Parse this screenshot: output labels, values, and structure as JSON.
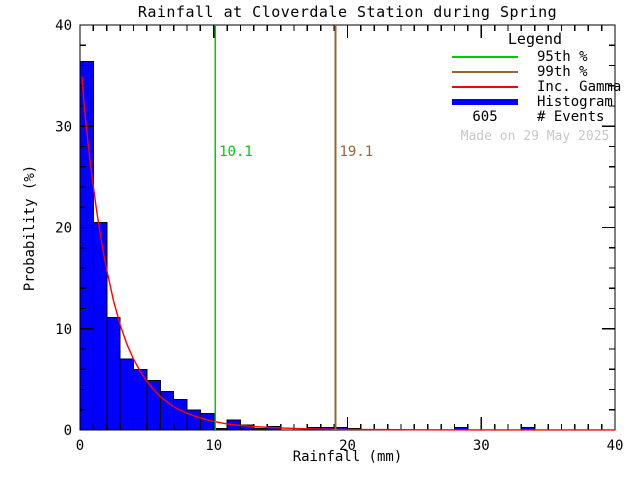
{
  "chart_data": {
    "type": "bar",
    "title": "Rainfall at Cloverdale Station during Spring",
    "xlabel": "Rainfall (mm)",
    "ylabel": "Probability (%)",
    "xlim": [
      0,
      40
    ],
    "ylim": [
      0,
      40
    ],
    "x_major_ticks": [
      0,
      10,
      20,
      30,
      40
    ],
    "x_minor_step": 1,
    "y_major_ticks": [
      0,
      10,
      20,
      30,
      40
    ],
    "y_minor_step": 2,
    "grid": false,
    "legend_position": "top-right",
    "histogram": {
      "color": "#0000ff",
      "bin_start": 0,
      "bin_width": 1,
      "values": [
        36.4,
        20.5,
        11.1,
        7.0,
        6.0,
        4.9,
        3.8,
        3.0,
        2.0,
        1.65,
        0.17,
        1.0,
        0.5,
        0.17,
        0.33,
        0,
        0,
        0.25,
        0.25,
        0.25,
        0.17,
        0,
        0,
        0,
        0,
        0,
        0,
        0,
        0.25,
        0,
        0,
        0,
        0,
        0.25,
        0,
        0,
        0,
        0,
        0,
        0
      ]
    },
    "gamma_fit": {
      "name": "Inc. Gamma",
      "color": "#ff0000",
      "points": [
        [
          0.15,
          34.9
        ],
        [
          0.3,
          32.2
        ],
        [
          0.5,
          29.6
        ],
        [
          0.75,
          26.6
        ],
        [
          1,
          24.0
        ],
        [
          1.25,
          21.6
        ],
        [
          1.5,
          19.5
        ],
        [
          1.75,
          17.5
        ],
        [
          2,
          15.8
        ],
        [
          2.5,
          12.8
        ],
        [
          3,
          10.4
        ],
        [
          3.5,
          8.5
        ],
        [
          4,
          7.0
        ],
        [
          4.5,
          5.8
        ],
        [
          5,
          4.8
        ],
        [
          5.5,
          4.0
        ],
        [
          6,
          3.3
        ],
        [
          6.5,
          2.8
        ],
        [
          7,
          2.3
        ],
        [
          7.5,
          1.95
        ],
        [
          8,
          1.65
        ],
        [
          8.5,
          1.4
        ],
        [
          9,
          1.2
        ],
        [
          9.5,
          1.0
        ],
        [
          10,
          0.85
        ],
        [
          11,
          0.6
        ],
        [
          12,
          0.45
        ],
        [
          13,
          0.34
        ],
        [
          14,
          0.26
        ],
        [
          15,
          0.2
        ],
        [
          16,
          0.15
        ],
        [
          17,
          0.12
        ],
        [
          18,
          0.09
        ],
        [
          19,
          0.07
        ],
        [
          20,
          0.06
        ],
        [
          22,
          0.04
        ],
        [
          25,
          0.02
        ],
        [
          30,
          0.01
        ],
        [
          35,
          0.005
        ],
        [
          40,
          0.003
        ]
      ]
    },
    "percentile_lines": [
      {
        "name": "95th-percentile",
        "value": 10.1,
        "label": "10.1",
        "color": "#00cc00"
      },
      {
        "name": "99th-percentile",
        "value": 19.1,
        "label": "19.1",
        "color": "#996633"
      }
    ]
  },
  "legend": {
    "title": "Legend",
    "items": [
      {
        "name": "95th-percentile",
        "style": "line",
        "color": "#00cc00",
        "label": "95th %"
      },
      {
        "name": "99th-percentile",
        "style": "line",
        "color": "#996633",
        "label": "99th %"
      },
      {
        "name": "gamma-fit",
        "style": "line",
        "color": "#ff0000",
        "label": "Inc. Gamma"
      },
      {
        "name": "histogram",
        "style": "thick",
        "color": "#0000ff",
        "label": "Histogram"
      },
      {
        "name": "event-count",
        "style": "value",
        "value": "605",
        "label": "# Events"
      }
    ],
    "note": "Made on 29 May 2025",
    "note_color": "#c8c8c8"
  },
  "colors": {
    "axis": "#000000",
    "background": "#ffffff"
  }
}
